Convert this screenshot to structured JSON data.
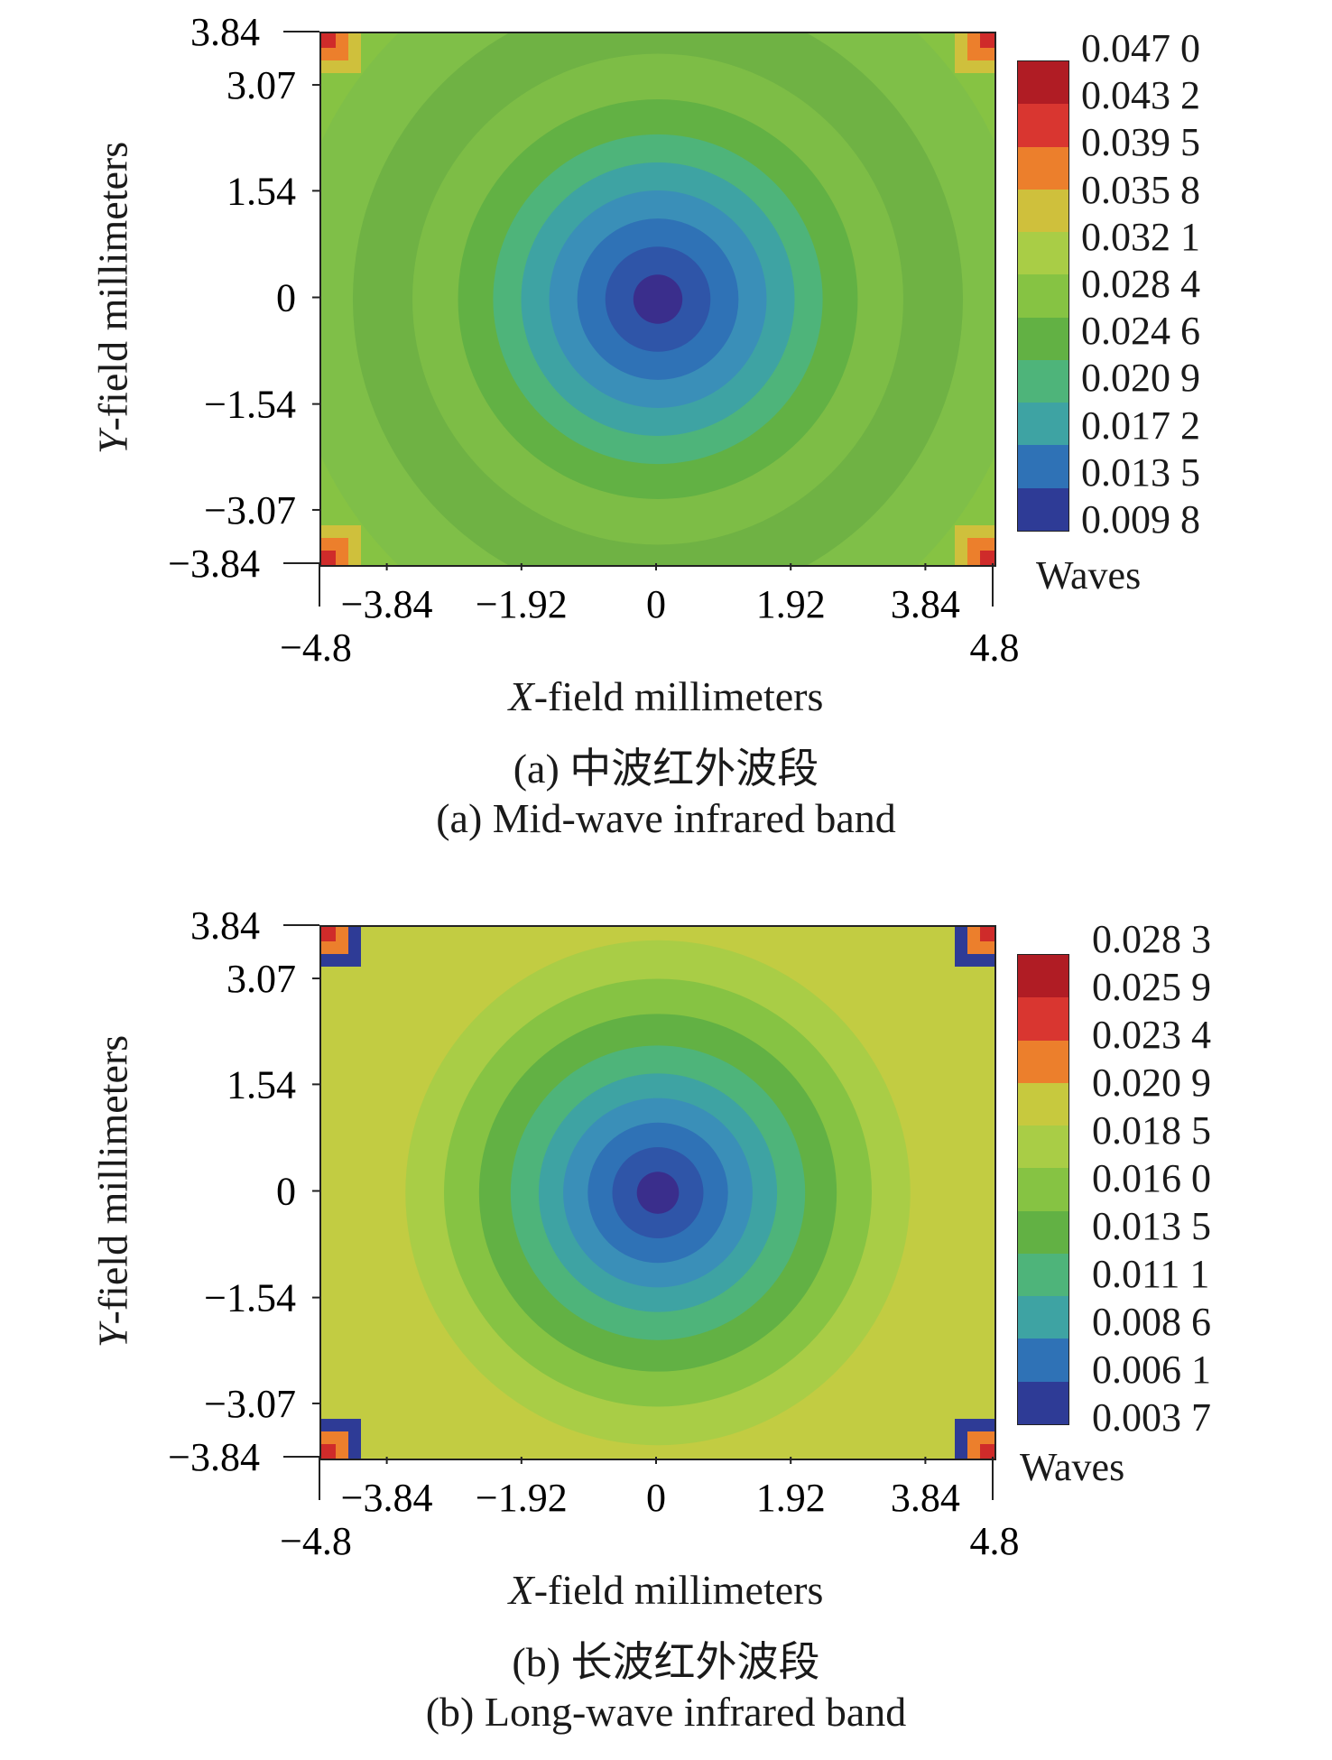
{
  "chart_data": [
    {
      "type": "heatmap",
      "caption_cn": "(a) 中波红外波段",
      "caption_en": "(a) Mid-wave infrared band",
      "xlabel_italic": "X",
      "xlabel_rest": "-field millimeters",
      "ylabel_italic": "Y",
      "ylabel_rest": "-field millimeters",
      "units": "Waves",
      "xlim": [
        -4.8,
        4.8
      ],
      "ylim": [
        -3.84,
        3.84
      ],
      "x_ticks": [
        "−3.84",
        "−1.92",
        "0",
        "1.92",
        "3.84"
      ],
      "x_tick_values": [
        -3.84,
        -1.92,
        0,
        1.92,
        3.84
      ],
      "x_ends": [
        "−4.8",
        "4.8"
      ],
      "y_ticks": [
        "3.84",
        "3.07",
        "1.54",
        "0",
        "−1.54",
        "−3.07",
        "−3.84"
      ],
      "y_tick_values": [
        3.84,
        3.07,
        1.54,
        0,
        -1.54,
        -3.07,
        -3.84
      ],
      "colorbar_labels": [
        "0.047 0",
        "0.043 2",
        "0.039 5",
        "0.035 8",
        "0.032 1",
        "0.028 4",
        "0.024 6",
        "0.020 9",
        "0.017 2",
        "0.013 5",
        "0.009 8"
      ],
      "colorbar_colors": [
        "#b01c24",
        "#d93630",
        "#ec7f2c",
        "#cfc03c",
        "#a9cd46",
        "#86c343",
        "#62b144",
        "#4eb47a",
        "#3ea3a3",
        "#2f72b6",
        "#2e3b96"
      ],
      "field_rings": [
        {
          "r": 0.35,
          "color": "#3a2e8c"
        },
        {
          "r": 0.75,
          "color": "#2f55a8"
        },
        {
          "r": 1.15,
          "color": "#2f72b6"
        },
        {
          "r": 1.55,
          "color": "#3a8fb8"
        },
        {
          "r": 1.95,
          "color": "#3ea3a3"
        },
        {
          "r": 2.35,
          "color": "#4eb47a"
        },
        {
          "r": 2.85,
          "color": "#62b144"
        },
        {
          "r": 3.5,
          "color": "#7dbd46"
        },
        {
          "r": 4.35,
          "color": "#6fb244"
        },
        {
          "r": 5.3,
          "color": "#7fbf48"
        },
        {
          "r": 7.0,
          "color": "#86c343"
        }
      ],
      "corner_colors": [
        "#cf2b2a",
        "#ec7f2c",
        "#cfc03c"
      ]
    },
    {
      "type": "heatmap",
      "caption_cn": "(b) 长波红外波段",
      "caption_en": "(b) Long-wave infrared band",
      "xlabel_italic": "X",
      "xlabel_rest": "-field millimeters",
      "ylabel_italic": "Y",
      "ylabel_rest": "-field millimeters",
      "units": "Waves",
      "xlim": [
        -4.8,
        4.8
      ],
      "ylim": [
        -3.84,
        3.84
      ],
      "x_ticks": [
        "−3.84",
        "−1.92",
        "0",
        "1.92",
        "3.84"
      ],
      "x_tick_values": [
        -3.84,
        -1.92,
        0,
        1.92,
        3.84
      ],
      "x_ends": [
        "−4.8",
        "4.8"
      ],
      "y_ticks": [
        "3.84",
        "3.07",
        "1.54",
        "0",
        "−1.54",
        "−3.07",
        "−3.84"
      ],
      "y_tick_values": [
        3.84,
        3.07,
        1.54,
        0,
        -1.54,
        -3.07,
        -3.84
      ],
      "colorbar_labels": [
        "0.028 3",
        "0.025 9",
        "0.023 4",
        "0.020 9",
        "0.018 5",
        "0.016 0",
        "0.013 5",
        "0.011 1",
        "0.008 6",
        "0.006 1",
        "0.003 7"
      ],
      "colorbar_colors": [
        "#b01c24",
        "#d93630",
        "#ec7f2c",
        "#c7c93e",
        "#a9cd46",
        "#86c343",
        "#62b144",
        "#4eb47a",
        "#3ea3a3",
        "#2f72b6",
        "#2e3b96"
      ],
      "field_rings": [
        {
          "r": 0.3,
          "color": "#3a2e8c"
        },
        {
          "r": 0.65,
          "color": "#2f55a8"
        },
        {
          "r": 1.0,
          "color": "#2f72b6"
        },
        {
          "r": 1.35,
          "color": "#3a8fb8"
        },
        {
          "r": 1.7,
          "color": "#3ea3a3"
        },
        {
          "r": 2.1,
          "color": "#4eb47a"
        },
        {
          "r": 2.55,
          "color": "#62b144"
        },
        {
          "r": 3.05,
          "color": "#86c343"
        },
        {
          "r": 3.6,
          "color": "#a9cd46"
        },
        {
          "r": 7.0,
          "color": "#c2cc42"
        }
      ],
      "corner_colors": [
        "#cf2b2a",
        "#ec7f2c",
        "#2e3b96"
      ]
    }
  ]
}
